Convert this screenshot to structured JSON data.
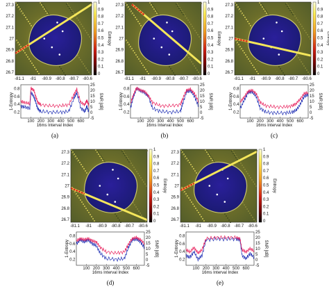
{
  "panels": [
    {
      "caption": "(a)",
      "map": {
        "ylabel_ticks": [
          "27.3",
          "27.2",
          "27.1",
          "27",
          "26.9",
          "26.8",
          "26.7"
        ],
        "xlabel_ticks": [
          "-81.1",
          "-81",
          "-80.9",
          "-80.8",
          "-80.7",
          "-80.6"
        ],
        "colorbar_label": "Entropy",
        "colorbar_ticks": [
          "1",
          "0.9",
          "0.8",
          "0.7",
          "0.6",
          "0.5",
          "0.4",
          "0.3",
          "0.2",
          "0.1",
          "0"
        ],
        "track": {
          "from": [
            -81.15,
            26.87
          ],
          "to": [
            -80.6,
            27.3
          ]
        }
      },
      "chart_data": {
        "type": "line",
        "xlabel": "16ms Interval Index",
        "ylabel_left": "1-Entropy",
        "ylabel_right": "SNR [dB]",
        "xticks": [
          "100",
          "200",
          "300",
          "400",
          "500",
          "600"
        ],
        "yticks_left": [
          "0.8",
          "0.6",
          "0.4",
          "0.2"
        ],
        "yticks_right": [
          "25",
          "20",
          "15",
          "10",
          "5",
          "0",
          "-5"
        ],
        "xlim": [
          0,
          680
        ],
        "ylim_left": [
          0.05,
          0.9
        ],
        "ylim_right": [
          -5,
          25
        ],
        "series": [
          {
            "name": "1-Entropy",
            "axis": "left",
            "color": "#1f2fb4",
            "x": [
              0,
              40,
              90,
              100,
              130,
              150,
              170,
              200,
              300,
              400,
              480,
              530,
              560,
              600,
              640,
              660,
              680
            ],
            "y": [
              0.35,
              0.33,
              0.3,
              0.7,
              0.6,
              0.45,
              0.28,
              0.22,
              0.2,
              0.2,
              0.22,
              0.55,
              0.7,
              0.3,
              0.22,
              0.35,
              0.2
            ]
          },
          {
            "name": "SNR",
            "axis": "right",
            "color": "#e8205c",
            "x": [
              0,
              40,
              90,
              100,
              130,
              150,
              170,
              200,
              300,
              400,
              480,
              530,
              560,
              600,
              640,
              660,
              680
            ],
            "y": [
              10,
              9,
              8,
              22,
              20,
              14,
              9,
              7,
              6,
              6,
              7,
              16,
              21,
              9,
              7,
              11,
              6
            ]
          }
        ]
      }
    },
    {
      "caption": "(b)",
      "map": {
        "ylabel_ticks": [
          "27.3",
          "27.2",
          "27.1",
          "27",
          "26.9",
          "26.8",
          "26.7"
        ],
        "xlabel_ticks": [
          "-81.1",
          "-81",
          "-80.9",
          "-80.8",
          "-80.7",
          "-80.6"
        ],
        "colorbar_label": "Entropy",
        "colorbar_ticks": [
          "1",
          "0.9",
          "0.8",
          "0.7",
          "0.6",
          "0.5",
          "0.4",
          "0.3",
          "0.2",
          "0.1",
          "0"
        ],
        "track": {
          "from": [
            -81.1,
            27.3
          ],
          "to": [
            -80.6,
            26.78
          ]
        }
      },
      "chart_data": {
        "type": "line",
        "xlabel": "16ms Interval Index",
        "ylabel_left": "1-Entropy",
        "ylabel_right": "SNR [dB]",
        "xticks": [
          "100",
          "200",
          "300",
          "400",
          "500",
          "600"
        ],
        "yticks_left": [
          "0.8",
          "0.6",
          "0.4",
          "0.2"
        ],
        "yticks_right": [
          "25",
          "20",
          "15",
          "10",
          "5",
          "0",
          "-5"
        ],
        "xlim": [
          0,
          680
        ],
        "ylim_left": [
          0.05,
          0.9
        ],
        "ylim_right": [
          -5,
          25
        ],
        "series": [
          {
            "name": "1-Entropy",
            "axis": "left",
            "color": "#1f2fb4",
            "x": [
              0,
              30,
              60,
              100,
              140,
              180,
              220,
              300,
              400,
              500,
              520,
              560,
              600,
              640,
              680
            ],
            "y": [
              0.3,
              0.6,
              0.8,
              0.75,
              0.7,
              0.6,
              0.3,
              0.22,
              0.2,
              0.22,
              0.4,
              0.72,
              0.75,
              0.6,
              0.35
            ]
          },
          {
            "name": "SNR",
            "axis": "right",
            "color": "#e8205c",
            "x": [
              0,
              30,
              60,
              100,
              140,
              180,
              220,
              300,
              400,
              500,
              520,
              560,
              600,
              640,
              680
            ],
            "y": [
              8,
              16,
              22,
              20,
              19,
              15,
              9,
              6,
              6,
              7,
              12,
              20,
              21,
              17,
              10
            ]
          }
        ]
      }
    },
    {
      "caption": "(c)",
      "map": {
        "ylabel_ticks": [
          "27.3",
          "27.2",
          "27.1",
          "27",
          "26.9",
          "26.8",
          "26.7"
        ],
        "xlabel_ticks": [
          "-81.1",
          "-81",
          "-80.9",
          "-80.8",
          "-80.7",
          "-80.6"
        ],
        "colorbar_label": "Entropy",
        "colorbar_ticks": [
          "1",
          "0.9",
          "0.8",
          "0.7",
          "0.6",
          "0.5",
          "0.4",
          "0.3",
          "0.2",
          "0.1",
          "0"
        ],
        "track": {
          "from": [
            -81.15,
            27.0
          ],
          "to": [
            -80.6,
            26.85
          ]
        }
      },
      "chart_data": {
        "type": "line",
        "xlabel": "16ms Interval Index",
        "ylabel_left": "1-Entropy",
        "ylabel_right": "SNR [dB]",
        "xticks": [
          "100",
          "200",
          "300",
          "400",
          "500",
          "600"
        ],
        "yticks_left": [
          "0.8",
          "0.6",
          "0.4",
          "0.2"
        ],
        "yticks_right": [
          "25",
          "20",
          "15",
          "10",
          "5",
          "0",
          "-5"
        ],
        "xlim": [
          0,
          680
        ],
        "ylim_left": [
          0.05,
          0.9
        ],
        "ylim_right": [
          -5,
          25
        ],
        "series": [
          {
            "name": "1-Entropy",
            "axis": "left",
            "color": "#1f2fb4",
            "x": [
              0,
              40,
              80,
              120,
              160,
              200,
              260,
              350,
              450,
              520,
              560,
              600,
              640,
              680
            ],
            "y": [
              0.3,
              0.5,
              0.7,
              0.72,
              0.6,
              0.3,
              0.2,
              0.18,
              0.18,
              0.2,
              0.25,
              0.4,
              0.6,
              0.65
            ]
          },
          {
            "name": "SNR",
            "axis": "right",
            "color": "#e8205c",
            "x": [
              0,
              40,
              80,
              120,
              160,
              200,
              260,
              350,
              450,
              520,
              560,
              600,
              640,
              680
            ],
            "y": [
              9,
              14,
              19,
              20,
              17,
              9,
              6,
              5,
              5,
              6,
              8,
              12,
              17,
              18
            ]
          }
        ]
      }
    },
    {
      "caption": "(d)",
      "map": {
        "ylabel_ticks": [
          "27.3",
          "27.2",
          "27.1",
          "27",
          "26.9",
          "26.8",
          "26.7"
        ],
        "xlabel_ticks": [
          "-81.1",
          "-81",
          "-80.9",
          "-80.8",
          "-80.7",
          "-80.6"
        ],
        "colorbar_label": "Entropy",
        "colorbar_ticks": [
          "1",
          "0.9",
          "0.8",
          "0.7",
          "0.6",
          "0.5",
          "0.4",
          "0.3",
          "0.2",
          "0.1",
          "0"
        ],
        "track": {
          "from": [
            -81.15,
            26.98
          ],
          "to": [
            -80.6,
            26.7
          ]
        }
      },
      "chart_data": {
        "type": "line",
        "xlabel": "16ms Interval Index",
        "ylabel_left": "1-Entropy",
        "ylabel_right": "SNR [dB]",
        "xticks": [
          "100",
          "200",
          "300",
          "400",
          "500",
          "600"
        ],
        "yticks_left": [
          "0.8",
          "0.6",
          "0.4",
          "0.2"
        ],
        "yticks_right": [
          "25",
          "20",
          "15",
          "10",
          "5",
          "0",
          "-5"
        ],
        "xlim": [
          0,
          680
        ],
        "ylim_left": [
          0.05,
          0.9
        ],
        "ylim_right": [
          -5,
          25
        ],
        "series": [
          {
            "name": "1-Entropy",
            "axis": "left",
            "color": "#1f2fb4",
            "x": [
              0,
              40,
              80,
              120,
              160,
              200,
              240,
              300,
              400,
              480,
              520,
              560,
              600,
              640,
              680
            ],
            "y": [
              0.6,
              0.7,
              0.65,
              0.7,
              0.6,
              0.55,
              0.35,
              0.22,
              0.2,
              0.22,
              0.5,
              0.7,
              0.72,
              0.65,
              0.5
            ]
          },
          {
            "name": "SNR",
            "axis": "right",
            "color": "#e8205c",
            "x": [
              0,
              40,
              80,
              120,
              160,
              200,
              240,
              300,
              400,
              480,
              520,
              560,
              600,
              640,
              680
            ],
            "y": [
              17,
              19,
              18,
              19,
              17,
              16,
              11,
              7,
              6,
              7,
              14,
              19,
              20,
              18,
              15
            ]
          }
        ]
      }
    },
    {
      "caption": "(e)",
      "map": {
        "ylabel_ticks": [
          "27.3",
          "27.2",
          "27.1",
          "27",
          "26.9",
          "26.8",
          "26.7"
        ],
        "xlabel_ticks": [
          "-81.1",
          "-81",
          "-80.9",
          "-80.8",
          "-80.7",
          "-80.6"
        ],
        "colorbar_label": "Entropy",
        "colorbar_ticks": [
          "1",
          "0.9",
          "0.8",
          "0.7",
          "0.6",
          "0.5",
          "0.4",
          "0.3",
          "0.2",
          "0.1",
          "0"
        ],
        "track": {
          "from": [
            -81.15,
            26.96
          ],
          "to": [
            -80.6,
            27.3
          ]
        }
      },
      "chart_data": {
        "type": "line",
        "xlabel": "16ms Interval Index",
        "ylabel_left": "1-Entropy",
        "ylabel_right": "SNR [dB]",
        "xticks": [
          "100",
          "200",
          "300",
          "400",
          "500",
          "600"
        ],
        "yticks_left": [
          "0.8",
          "0.6",
          "0.4",
          "0.2"
        ],
        "yticks_right": [
          "25",
          "20",
          "15",
          "10",
          "5",
          "0",
          "-5"
        ],
        "xlim": [
          0,
          680
        ],
        "ylim_left": [
          0.05,
          0.9
        ],
        "ylim_right": [
          -5,
          25
        ],
        "series": [
          {
            "name": "1-Entropy",
            "axis": "left",
            "color": "#1f2fb4",
            "x": [
              0,
              40,
              80,
              120,
              160,
              200,
              300,
              400,
              500,
              540,
              560,
              600,
              640,
              680
            ],
            "y": [
              0.3,
              0.25,
              0.4,
              0.2,
              0.3,
              0.7,
              0.72,
              0.72,
              0.72,
              0.7,
              0.3,
              0.22,
              0.35,
              0.25
            ]
          },
          {
            "name": "SNR",
            "axis": "right",
            "color": "#e8205c",
            "x": [
              0,
              40,
              80,
              120,
              160,
              200,
              300,
              400,
              500,
              540,
              560,
              600,
              640,
              680
            ],
            "y": [
              9,
              7,
              11,
              6,
              9,
              19,
              20,
              20,
              20,
              19,
              9,
              7,
              10,
              8
            ]
          }
        ]
      }
    }
  ]
}
